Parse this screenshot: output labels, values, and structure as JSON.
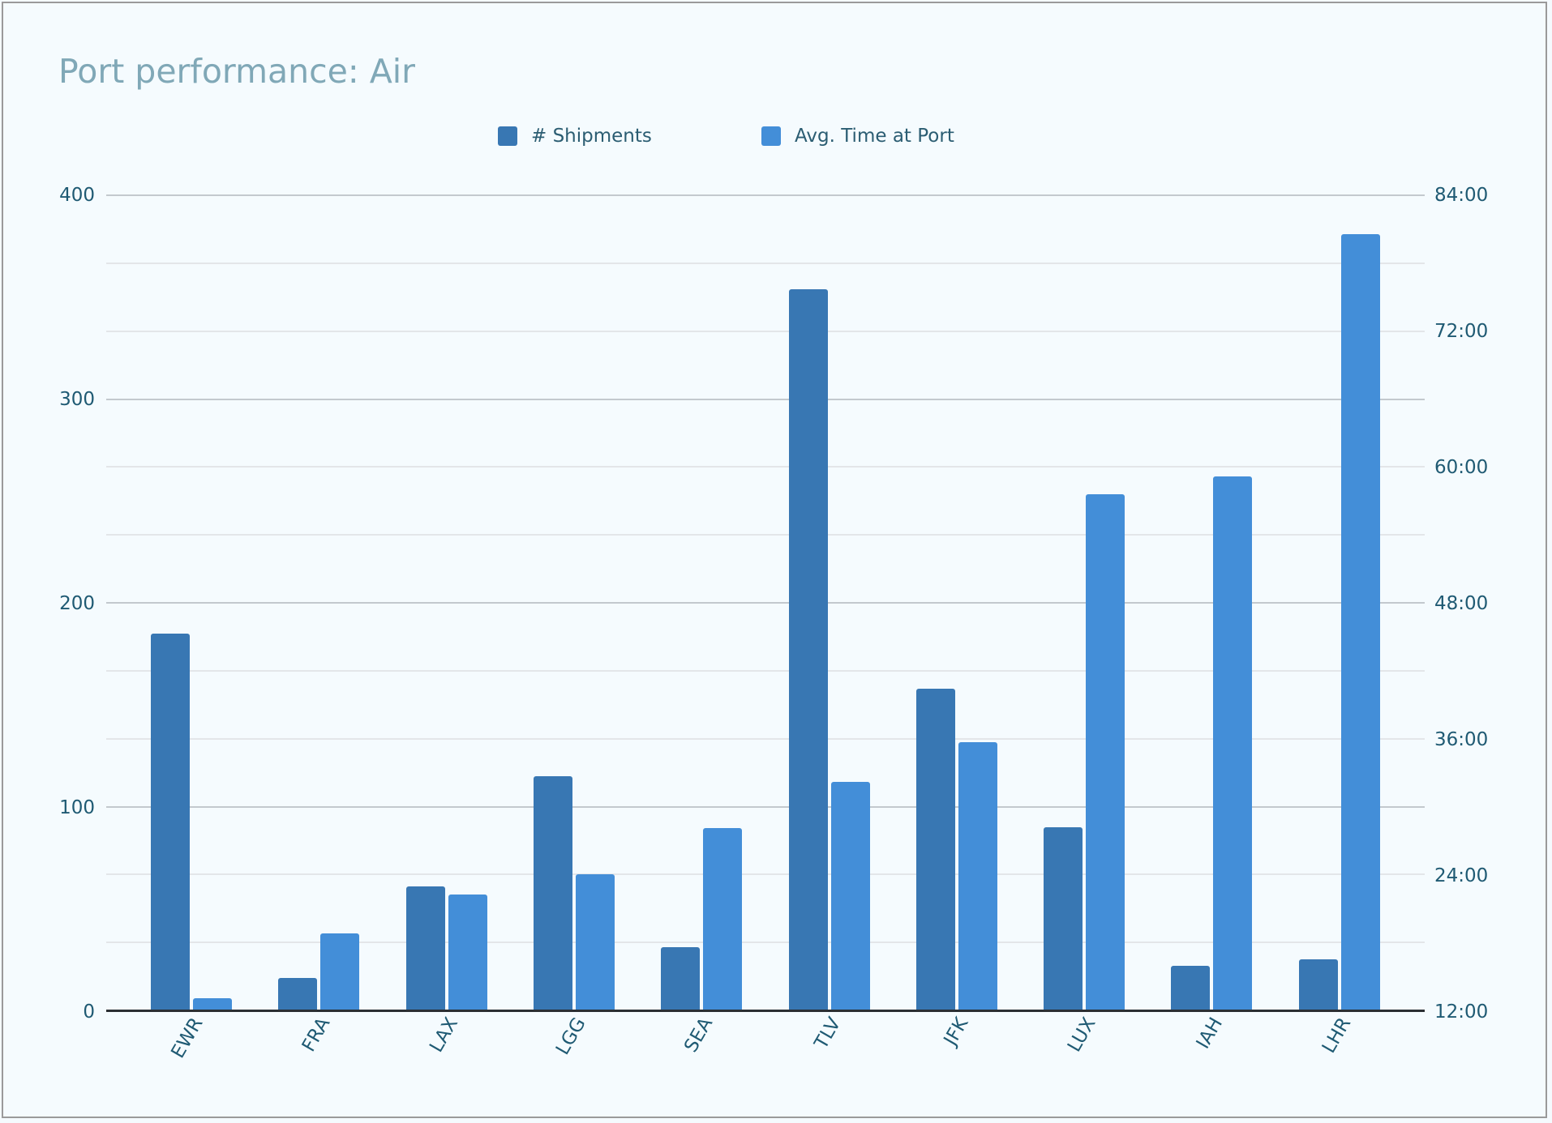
{
  "title": "Port performance: Air",
  "legend": [
    {
      "label": "# Shipments",
      "color": "#3877b3"
    },
    {
      "label": "Avg. Time at Port",
      "color": "#438ed8"
    }
  ],
  "axes": {
    "left_ticks": [
      "400",
      "300",
      "200",
      "100",
      "0"
    ],
    "right_ticks": [
      "84:00",
      "72:00",
      "60:00",
      "48:00",
      "36:00",
      "24:00",
      "12:00"
    ]
  },
  "chart_data": {
    "type": "bar",
    "title": "Port performance: Air",
    "xlabel": "",
    "ylabel": "",
    "categories": [
      "EWR",
      "FRA",
      "LAX",
      "LGG",
      "SEA",
      "TLV",
      "JFK",
      "LUX",
      "IAH",
      "LHR"
    ],
    "series": [
      {
        "name": "# Shipments",
        "axis": "left",
        "color": "#3877b3",
        "values": [
          185,
          16,
          61,
          115,
          31,
          354,
          158,
          90,
          22,
          25
        ]
      },
      {
        "name": "Avg. Time at Port",
        "axis": "right",
        "color": "#438ed8",
        "values_hours": [
          13.1,
          18.8,
          22.2,
          24.0,
          28.1,
          32.2,
          35.7,
          57.6,
          59.2,
          80.6
        ],
        "values": [
          "13:04",
          "18:48",
          "22:13",
          "23:56",
          "28:04",
          "32:09",
          "35:43",
          "57:34",
          "59:13",
          "80:36"
        ]
      }
    ],
    "ylim_left": [
      0,
      400
    ],
    "ylim_right": [
      "12:00",
      "84:00"
    ],
    "ylim_right_hours": [
      12,
      84
    ],
    "left_ticks": [
      0,
      100,
      200,
      300,
      400
    ],
    "right_ticks": [
      "12:00",
      "24:00",
      "36:00",
      "48:00",
      "60:00",
      "72:00",
      "84:00"
    ],
    "grid": true,
    "legend_position": "top",
    "x_tick_rotation": -60
  }
}
